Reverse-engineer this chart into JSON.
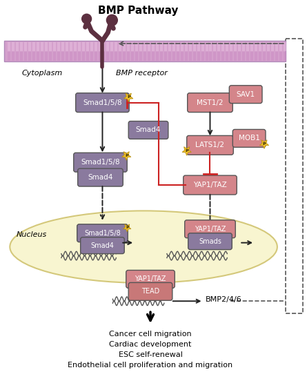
{
  "title": "BMP Pathway",
  "bg_color": "#ffffff",
  "membrane_color": "#d4a0cc",
  "cytoplasm_label": "Cytoplasm",
  "bmp_receptor_label": "BMP receptor",
  "nucleus_label": "Nucleus",
  "nucleus_color": "#f8f5d0",
  "nucleus_edge": "#d4c87a",
  "smad_color": "#8a7a9e",
  "hippo_color": "#d4858a",
  "tead_color": "#c87878",
  "outcome_lines": [
    "Cancer cell migration",
    "Cardiac development",
    "ESC self-renewal",
    "Endothelial cell proliferation and migration"
  ],
  "bmp246_label": "BMP2/4/6",
  "receptor_color": "#5c3040",
  "arrow_color": "#222222",
  "red_color": "#cc2222",
  "dashed_color": "#555555"
}
